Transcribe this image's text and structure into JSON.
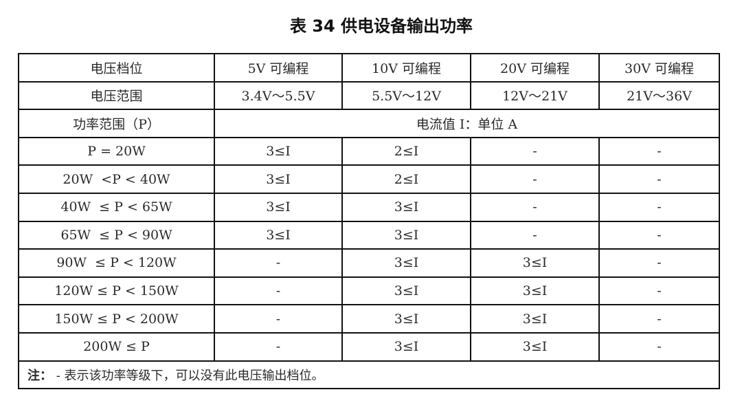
{
  "title": "表 34 供电设备输出功率",
  "header": {
    "row1": [
      "电压档位",
      "5V 可编程",
      "10V 可编程",
      "20V 可编程",
      "30V 可编程"
    ],
    "row2": [
      "电压范围",
      "3.4V～5.5V",
      "5.5V～12V",
      "12V～21V",
      "21V～36V"
    ],
    "row3": [
      "功率范围（P）",
      "电流值 I：单位 A"
    ]
  },
  "rows": [
    [
      "P = 20W",
      "3≤I",
      "2≤I",
      "-",
      "-"
    ],
    [
      "20W  <P < 40W",
      "3≤I",
      "2≤I",
      "-",
      "-"
    ],
    [
      "40W  ≤ P < 65W",
      "3≤I",
      "3≤I",
      "-",
      "-"
    ],
    [
      "65W  ≤ P < 90W",
      "3≤I",
      "3≤I",
      "-",
      "-"
    ],
    [
      "90W  ≤ P < 120W",
      "-",
      "3≤I",
      "3≤I",
      "-"
    ],
    [
      "120W ≤ P < 150W",
      "-",
      "3≤I",
      "3≤I",
      "-"
    ],
    [
      "150W ≤ P < 200W",
      "-",
      "3≤I",
      "3≤I",
      "-"
    ],
    [
      "200W ≤ P",
      "-",
      "3≤I",
      "3≤I",
      "-"
    ]
  ],
  "note": {
    "label": "注：",
    "text": " - 表示该功率等级下，可以没有此电压输出档位。"
  }
}
